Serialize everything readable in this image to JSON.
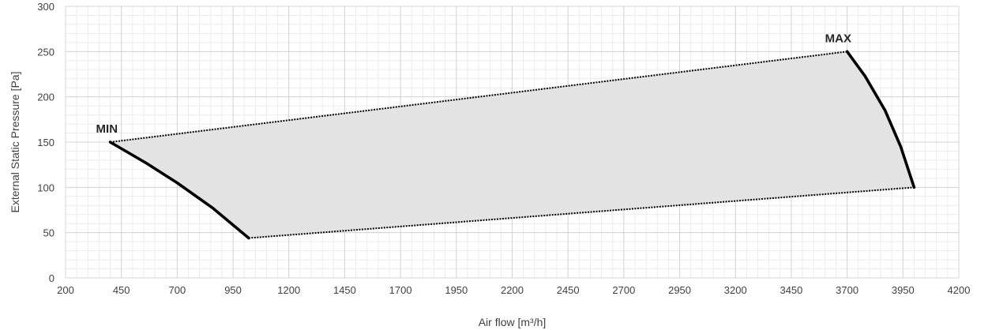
{
  "chart_data": {
    "type": "area",
    "title": "",
    "xlabel": "Air flow [m³/h]",
    "ylabel": "External Static Pressure [Pa]",
    "xlim": [
      200,
      4200
    ],
    "ylim": [
      0,
      300
    ],
    "x_ticks": [
      "200",
      "450",
      "700",
      "950",
      "1200",
      "1450",
      "1700",
      "1950",
      "2200",
      "2450",
      "2700",
      "2950",
      "3200",
      "3450",
      "3700",
      "3950",
      "4200"
    ],
    "y_ticks": [
      "0",
      "50",
      "100",
      "150",
      "200",
      "250",
      "300"
    ],
    "x_minor_step": 50,
    "y_minor_step": 10,
    "grid": true,
    "series": [
      {
        "name": "",
        "style": "thick-solid",
        "x": [
          400,
          560,
          700,
          860,
          1020
        ],
        "y": [
          150,
          127,
          105,
          77,
          44
        ]
      },
      {
        "name": "",
        "style": "thick-solid",
        "x": [
          3700,
          3780,
          3870,
          3940,
          4000
        ],
        "y": [
          250,
          223,
          185,
          145,
          100
        ]
      },
      {
        "name": "",
        "style": "dotted",
        "x": [
          400,
          3700
        ],
        "y": [
          150,
          250
        ]
      },
      {
        "name": "",
        "style": "dotted",
        "x": [
          1020,
          4000
        ],
        "y": [
          44,
          100
        ]
      }
    ],
    "annotations": [
      {
        "text": "MIN",
        "x": 400,
        "y": 150
      },
      {
        "text": "MAX",
        "x": 3700,
        "y": 250
      }
    ],
    "colors": {
      "fill": "#e3e3e3",
      "line": "#000000",
      "major_grid": "#d4d4d4",
      "minor_grid": "#ececec",
      "text": "#404040"
    }
  }
}
